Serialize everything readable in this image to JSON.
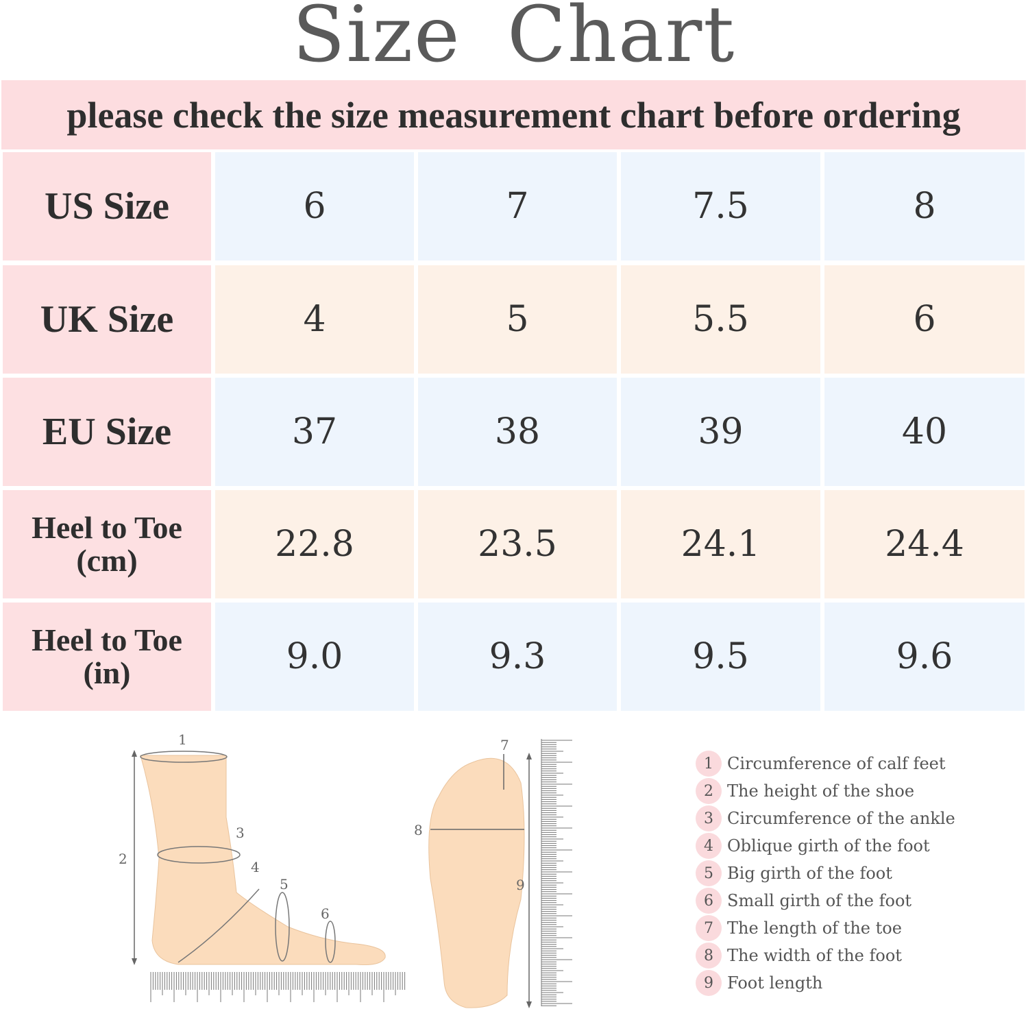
{
  "title": "Size Chart",
  "banner": "please check the size measurement chart before ordering",
  "colors": {
    "label_bg": "#fde0e2",
    "row_blue": "#eef5fd",
    "row_peach": "#fdf1e7",
    "banner_bg": "#fddde0"
  },
  "table": {
    "rows": [
      {
        "label": [
          "US Size"
        ],
        "values": [
          "6",
          "7",
          "7.5",
          "8"
        ]
      },
      {
        "label": [
          "UK Size"
        ],
        "values": [
          "4",
          "5",
          "5.5",
          "6"
        ]
      },
      {
        "label": [
          "EU Size"
        ],
        "values": [
          "37",
          "38",
          "39",
          "40"
        ]
      },
      {
        "label": [
          "Heel to Toe",
          "(cm)"
        ],
        "values": [
          "22.8",
          "23.5",
          "24.1",
          "24.4"
        ]
      },
      {
        "label": [
          "Heel to Toe",
          "(in)"
        ],
        "values": [
          "9.0",
          "9.3",
          "9.5",
          "9.6"
        ]
      }
    ]
  },
  "diagram": {
    "side_markers": [
      "1",
      "2",
      "3",
      "4",
      "5",
      "6"
    ],
    "sole_markers": [
      "7",
      "8",
      "9"
    ]
  },
  "legend": [
    {
      "num": "1",
      "text": "Circumference of calf feet"
    },
    {
      "num": "2",
      "text": "The height of the shoe"
    },
    {
      "num": "3",
      "text": "Circumference of the ankle"
    },
    {
      "num": "4",
      "text": "Oblique girth of the foot"
    },
    {
      "num": "5",
      "text": "Big girth of the foot"
    },
    {
      "num": "6",
      "text": "Small girth of the foot"
    },
    {
      "num": "7",
      "text": "The length of the toe"
    },
    {
      "num": "8",
      "text": "The width of the foot"
    },
    {
      "num": "9",
      "text": "Foot length"
    }
  ]
}
